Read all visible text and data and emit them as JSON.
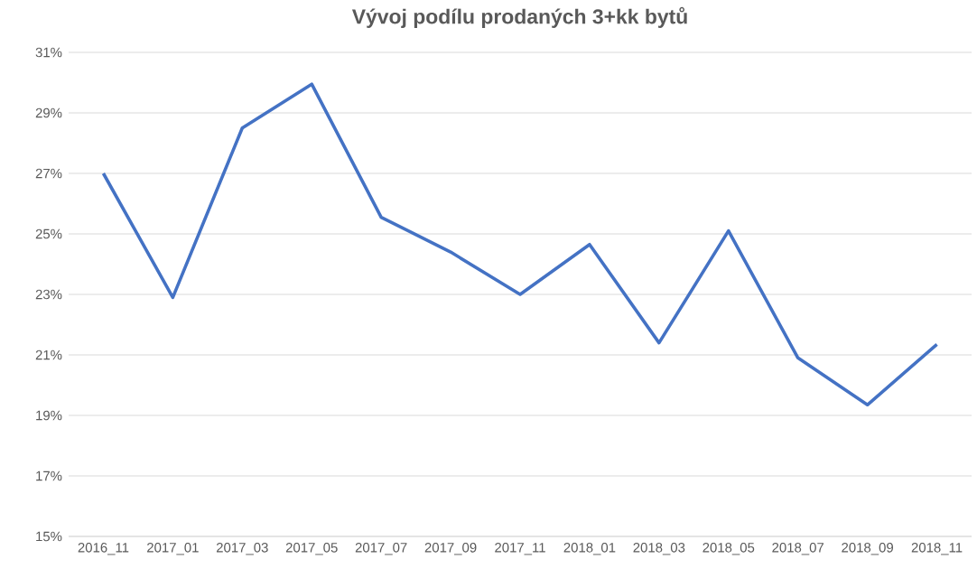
{
  "chart_data": {
    "type": "line",
    "title": "Vývoj podílu prodaných  3+kk bytů",
    "categories": [
      "2016_11",
      "2017_01",
      "2017_03",
      "2017_05",
      "2017_07",
      "2017_09",
      "2017_11",
      "2018_01",
      "2018_03",
      "2018_05",
      "2018_07",
      "2018_09",
      "2018_11"
    ],
    "series": [
      {
        "color": "#4472c4",
        "values": [
          27.0,
          22.9,
          28.5,
          29.95,
          25.55,
          24.4,
          23.0,
          24.65,
          21.4,
          25.1,
          20.9,
          19.35,
          21.35
        ]
      }
    ],
    "ylim": [
      15,
      31
    ],
    "yticks": [
      {
        "value": 15,
        "label": "15%"
      },
      {
        "value": 17,
        "label": "17%"
      },
      {
        "value": 19,
        "label": "19%"
      },
      {
        "value": 21,
        "label": "21%"
      },
      {
        "value": 23,
        "label": "23%"
      },
      {
        "value": 25,
        "label": "25%"
      },
      {
        "value": 27,
        "label": "27%"
      },
      {
        "value": 29,
        "label": "29%"
      },
      {
        "value": 31,
        "label": "31%"
      }
    ],
    "grid": "y",
    "marker": "none",
    "line_style": "solid"
  }
}
